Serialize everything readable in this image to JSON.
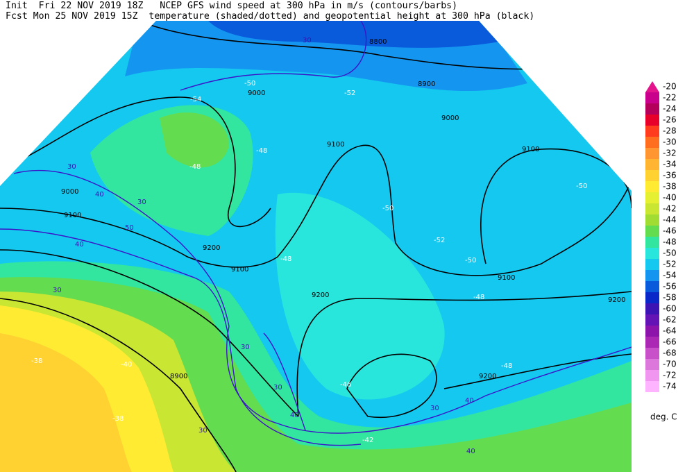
{
  "header": {
    "line1": "Init  Fri 22 NOV 2019 18Z   NCEP GFS wind speed at 300 hPa in m/s (contours/barbs)",
    "line2": "Fcst Mon 25 NOV 2019 15Z  temperature (shaded/dotted) and geopotential height at 300 hPa (black)"
  },
  "colorbar": {
    "unit": "deg. C",
    "levels": [
      -20,
      -22,
      -24,
      -26,
      -28,
      -30,
      -32,
      -34,
      -36,
      -38,
      -40,
      -42,
      -44,
      -46,
      -48,
      -50,
      -52,
      -54,
      -56,
      -58,
      -60,
      -62,
      -64,
      -66,
      -68,
      -70,
      -72,
      -74
    ],
    "colors": [
      "#e4148c",
      "#c8008c",
      "#b4005a",
      "#e6002a",
      "#ff3c1e",
      "#ff6e1e",
      "#ff9632",
      "#ffb432",
      "#ffd232",
      "#ffec32",
      "#e6f032",
      "#c8e632",
      "#a0dc32",
      "#64dc50",
      "#32e6a0",
      "#28e6dc",
      "#14c8f0",
      "#1496f0",
      "#0a5adc",
      "#0a28c8",
      "#3c14b4",
      "#6414b4",
      "#8c14aa",
      "#aa28b4",
      "#c850c8",
      "#dc78dc",
      "#f096f0",
      "#ffb4ff"
    ]
  },
  "map": {
    "height_labels": [
      "8800",
      "8900",
      "9000",
      "9000",
      "9100",
      "9100",
      "9100",
      "9200",
      "9200",
      "9100",
      "9200",
      "9200",
      "9000",
      "9100",
      "8900"
    ],
    "wind_labels": [
      "30",
      "30",
      "40",
      "50",
      "30",
      "40",
      "30",
      "30",
      "30",
      "40",
      "30",
      "40",
      "40",
      "30"
    ],
    "temp_labels": [
      "-50",
      "-52",
      "-48",
      "-48",
      "-50",
      "-52",
      "-50",
      "-48",
      "-46",
      "-48",
      "-38",
      "-40",
      "-38",
      "-42",
      "-48",
      "-54",
      "-50"
    ]
  }
}
